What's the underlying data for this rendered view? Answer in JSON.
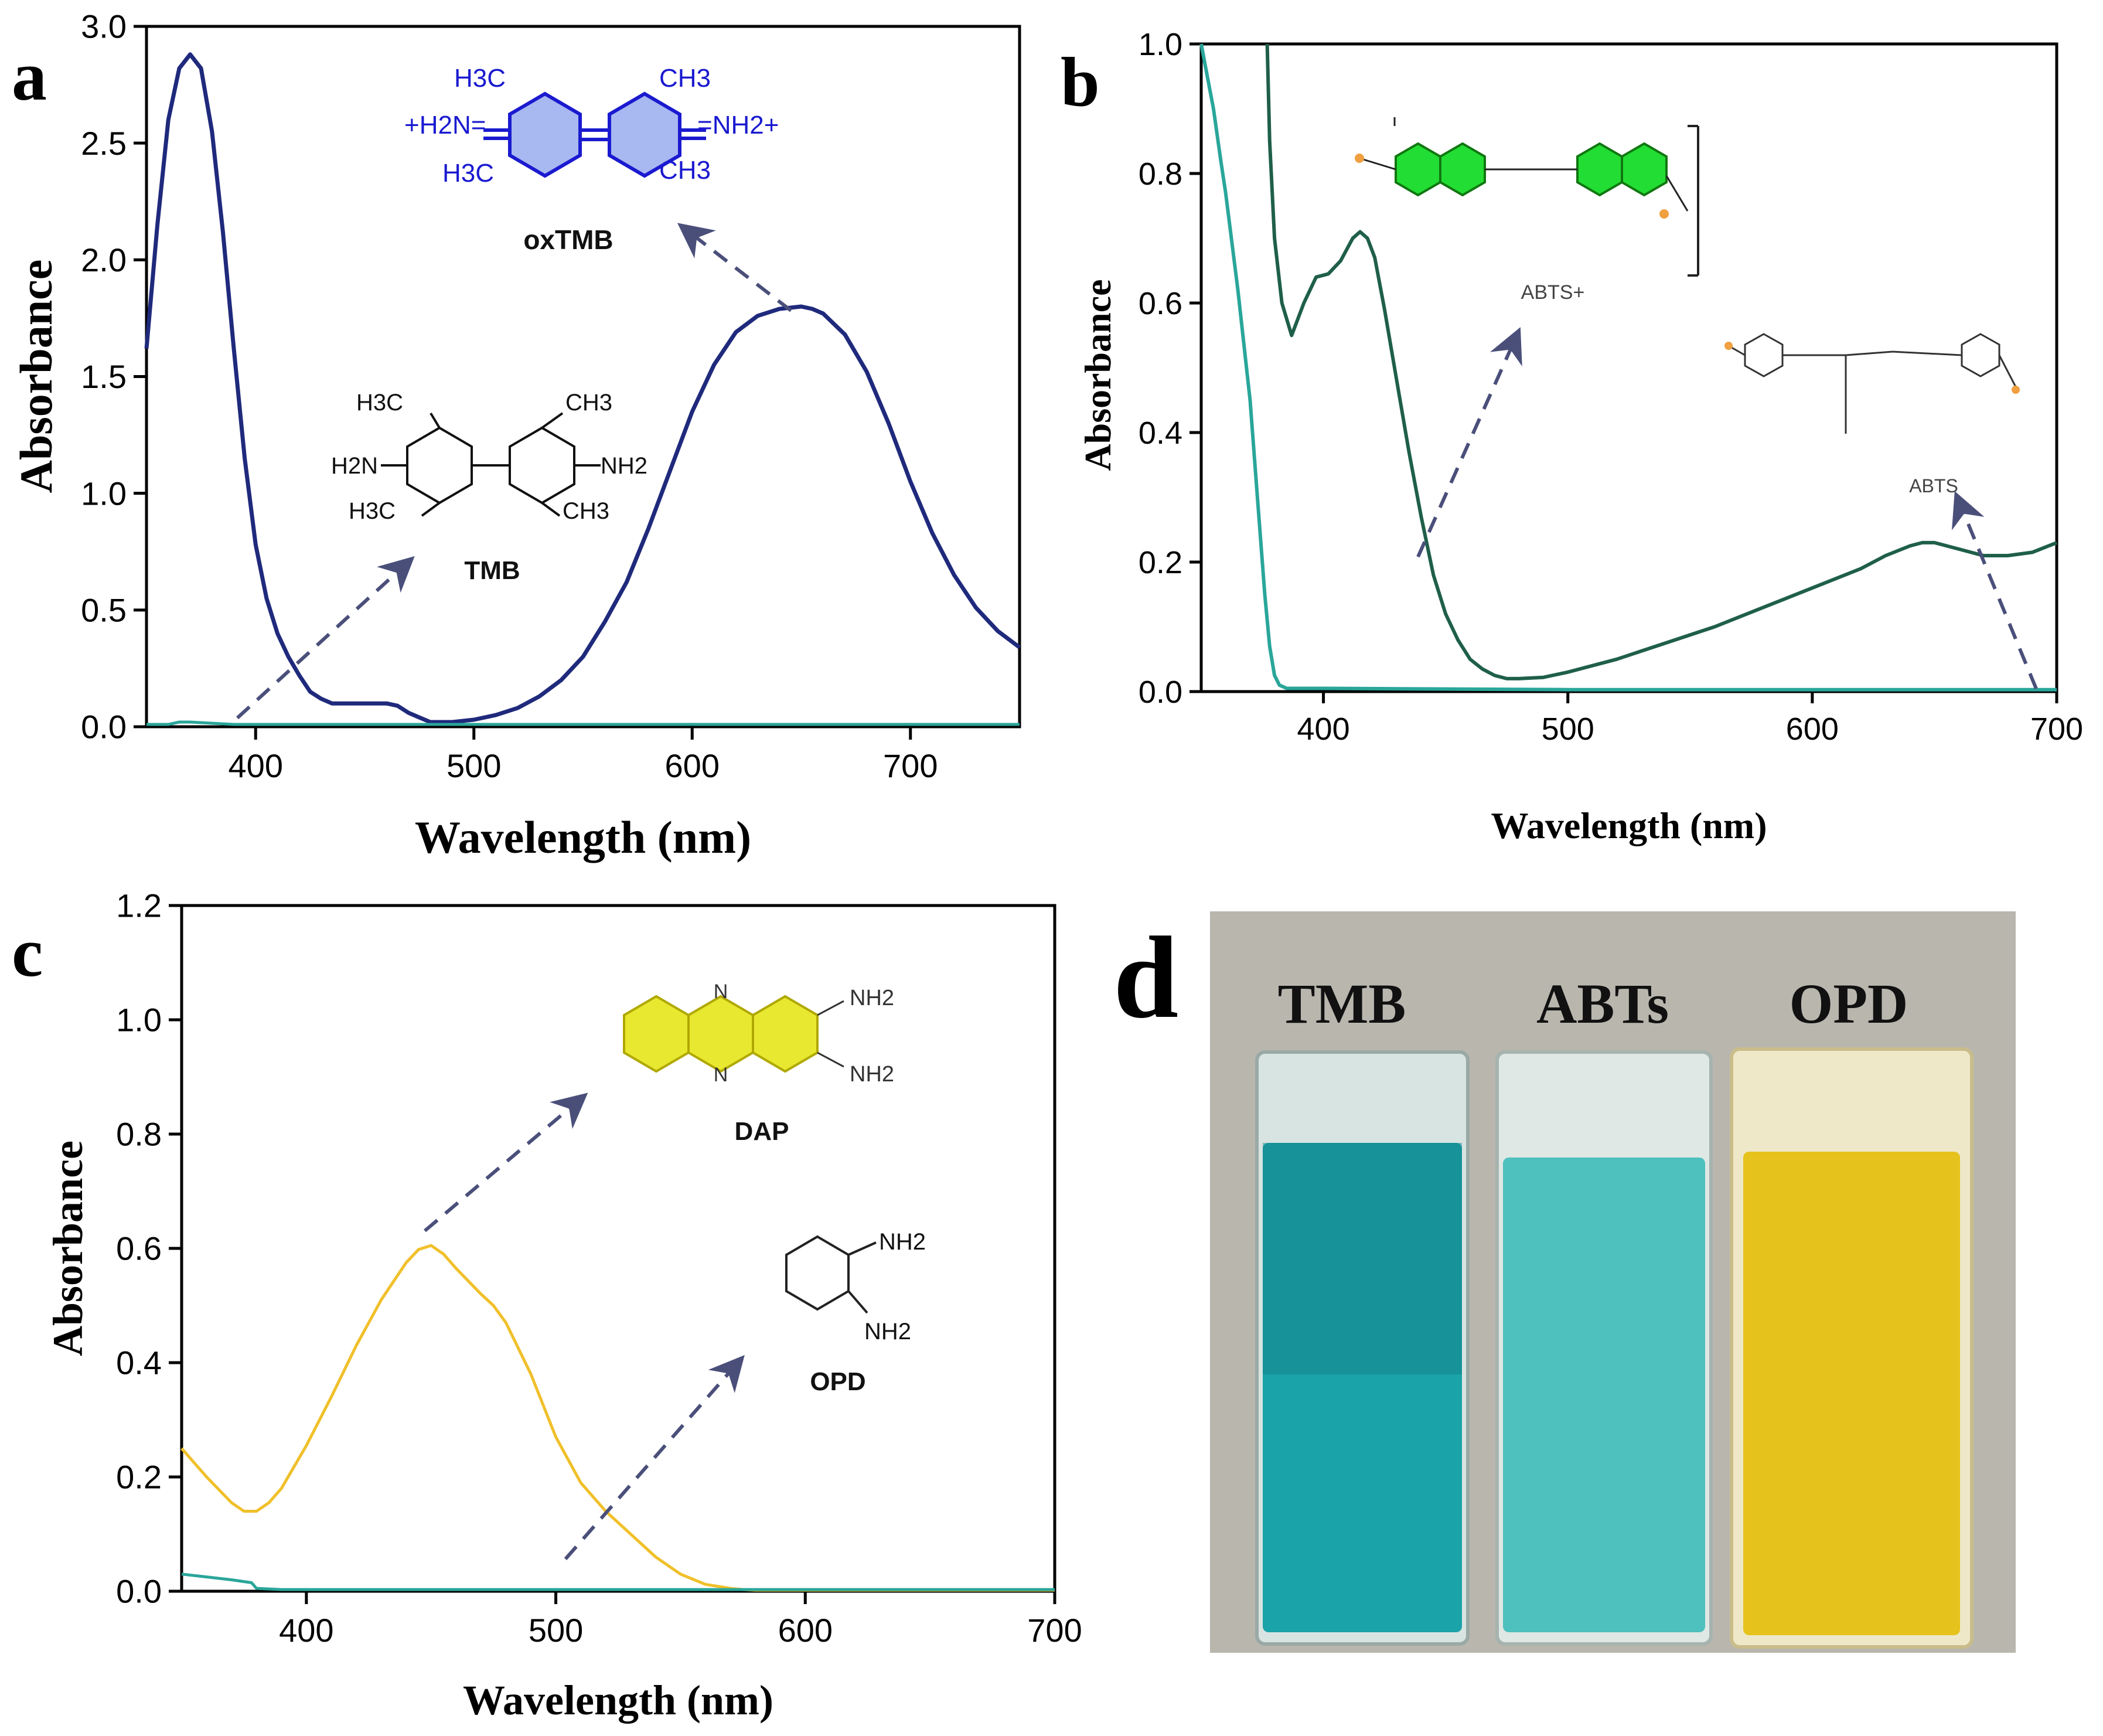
{
  "panels": {
    "a": {
      "letter": "a",
      "structures": {
        "oxTMB": {
          "label": "oxTMB",
          "top_left": "H3C",
          "top_right": "CH3",
          "left": "+H2N=",
          "right": "=NH2+",
          "bottom_left": "H3C",
          "bottom_right": "CH3"
        },
        "TMB": {
          "label": "TMB",
          "top_left": "H3C",
          "top_right": "CH3",
          "left": "H2N",
          "right": "NH2",
          "bottom_left": "H3C",
          "bottom_right": "CH3"
        }
      }
    },
    "b": {
      "letter": "b",
      "structures": {
        "oxidized": {
          "label": "ABTS+"
        },
        "reduced": {
          "label": "ABTS"
        }
      }
    },
    "c": {
      "letter": "c",
      "structures": {
        "DAP": {
          "label": "DAP",
          "group1": "NH2",
          "group2": "NH2",
          "ring_atom": "N"
        },
        "OPD": {
          "label": "OPD",
          "group1": "NH2",
          "group2": "NH2"
        }
      }
    },
    "d": {
      "letter": "d",
      "cuvette_labels": [
        "TMB",
        "ABTs",
        "OPD"
      ],
      "cuvette_colors": [
        "#1aa3a8",
        "#4ec0be",
        "#e6c21c"
      ]
    }
  },
  "colors": {
    "a_main": "#1f2a7c",
    "a_blank": "#2aa69a",
    "b_main": "#1f5f4a",
    "b_blank": "#2aa69a",
    "c_main": "#f0c02a",
    "c_blank": "#2aa69a",
    "arrow": "#4a4f7a",
    "oxTMB_struct": "#1a1ad0",
    "abts_green": "#22dd33",
    "dap_yellow": "#e8e830"
  },
  "chart_data": [
    {
      "panel": "a",
      "type": "line",
      "xlabel": "Wavelength (nm)",
      "ylabel": "Absorbance",
      "xlim": [
        350,
        750
      ],
      "ylim": [
        0,
        3.0
      ],
      "xticks": [
        "400",
        "500",
        "600",
        "700"
      ],
      "yticks": [
        "0.0",
        "0.5",
        "1.0",
        "1.5",
        "2.0",
        "2.5",
        "3.0"
      ],
      "series": [
        {
          "x": [
            350,
            355,
            360,
            365,
            370,
            375,
            380,
            385,
            390,
            395,
            400,
            405,
            410,
            415,
            420,
            425,
            430,
            435,
            440,
            450,
            460,
            465,
            470,
            475,
            480,
            485,
            490,
            500,
            510,
            520,
            530,
            540,
            550,
            560,
            570,
            580,
            590,
            600,
            610,
            620,
            630,
            640,
            650,
            655,
            660,
            670,
            680,
            690,
            700,
            710,
            720,
            730,
            740,
            750
          ],
          "y": [
            1.62,
            2.15,
            2.6,
            2.82,
            2.88,
            2.82,
            2.55,
            2.12,
            1.62,
            1.15,
            0.78,
            0.55,
            0.4,
            0.3,
            0.22,
            0.15,
            0.12,
            0.1,
            0.1,
            0.1,
            0.1,
            0.09,
            0.06,
            0.04,
            0.02,
            0.02,
            0.02,
            0.03,
            0.05,
            0.08,
            0.13,
            0.2,
            0.3,
            0.45,
            0.62,
            0.85,
            1.1,
            1.35,
            1.55,
            1.69,
            1.76,
            1.79,
            1.8,
            1.79,
            1.77,
            1.68,
            1.52,
            1.3,
            1.05,
            0.83,
            0.65,
            0.51,
            0.41,
            0.34
          ]
        },
        {
          "x": [
            350,
            360,
            365,
            370,
            380,
            390,
            400,
            450,
            500,
            550,
            600,
            650,
            700,
            750
          ],
          "y": [
            0.01,
            0.01,
            0.02,
            0.02,
            0.015,
            0.01,
            0.01,
            0.01,
            0.01,
            0.01,
            0.01,
            0.01,
            0.01,
            0.01
          ]
        }
      ]
    },
    {
      "panel": "b",
      "type": "line",
      "xlabel": "Wavelength (nm)",
      "ylabel": "Absorbance",
      "xlim": [
        350,
        700
      ],
      "ylim": [
        0,
        1.0
      ],
      "xticks": [
        "400",
        "500",
        "600",
        "700"
      ],
      "yticks": [
        "0.0",
        "0.2",
        "0.4",
        "0.6",
        "0.8",
        "1.0"
      ],
      "series": [
        {
          "x": [
            377,
            378,
            380,
            383,
            387,
            392,
            397,
            402,
            407,
            412,
            415,
            418,
            421,
            425,
            430,
            435,
            440,
            445,
            450,
            455,
            460,
            465,
            470,
            475,
            480,
            490,
            500,
            520,
            540,
            560,
            580,
            600,
            620,
            630,
            640,
            645,
            650,
            660,
            670,
            680,
            690,
            700
          ],
          "y": [
            1.0,
            0.85,
            0.7,
            0.6,
            0.55,
            0.6,
            0.64,
            0.645,
            0.665,
            0.7,
            0.71,
            0.7,
            0.67,
            0.59,
            0.48,
            0.37,
            0.27,
            0.18,
            0.12,
            0.08,
            0.05,
            0.035,
            0.025,
            0.02,
            0.02,
            0.022,
            0.03,
            0.05,
            0.075,
            0.1,
            0.13,
            0.16,
            0.19,
            0.21,
            0.225,
            0.23,
            0.23,
            0.22,
            0.21,
            0.21,
            0.215,
            0.23
          ]
        },
        {
          "x": [
            350,
            352,
            355,
            358,
            360,
            365,
            370,
            373,
            376,
            378,
            380,
            382,
            385,
            390,
            400,
            500,
            600,
            700
          ],
          "y": [
            1.0,
            0.96,
            0.9,
            0.82,
            0.77,
            0.62,
            0.45,
            0.3,
            0.15,
            0.07,
            0.025,
            0.01,
            0.005,
            0.005,
            0.005,
            0.003,
            0.003,
            0.003
          ]
        }
      ]
    },
    {
      "panel": "c",
      "type": "line",
      "xlabel": "Wavelength (nm)",
      "ylabel": "Absorbance",
      "xlim": [
        350,
        700
      ],
      "ylim": [
        0,
        1.2
      ],
      "xticks": [
        "400",
        "500",
        "600",
        "700"
      ],
      "yticks": [
        "0.0",
        "0.2",
        "0.4",
        "0.6",
        "0.8",
        "1.0",
        "1.2"
      ],
      "series": [
        {
          "x": [
            350,
            360,
            370,
            375,
            380,
            385,
            390,
            400,
            410,
            420,
            430,
            440,
            445,
            450,
            455,
            460,
            470,
            475,
            480,
            490,
            500,
            510,
            520,
            530,
            540,
            550,
            560,
            570,
            575,
            580,
            600,
            650,
            700
          ],
          "y": [
            0.25,
            0.2,
            0.155,
            0.14,
            0.14,
            0.155,
            0.18,
            0.255,
            0.34,
            0.43,
            0.51,
            0.575,
            0.598,
            0.605,
            0.59,
            0.565,
            0.52,
            0.5,
            0.47,
            0.38,
            0.27,
            0.19,
            0.14,
            0.1,
            0.06,
            0.03,
            0.012,
            0.005,
            0.003,
            0.002,
            0.002,
            0.002,
            0.002
          ]
        },
        {
          "x": [
            350,
            360,
            370,
            378,
            380,
            390,
            400,
            500,
            600,
            700
          ],
          "y": [
            0.03,
            0.025,
            0.02,
            0.015,
            0.005,
            0.003,
            0.003,
            0.003,
            0.003,
            0.003
          ]
        }
      ]
    }
  ]
}
